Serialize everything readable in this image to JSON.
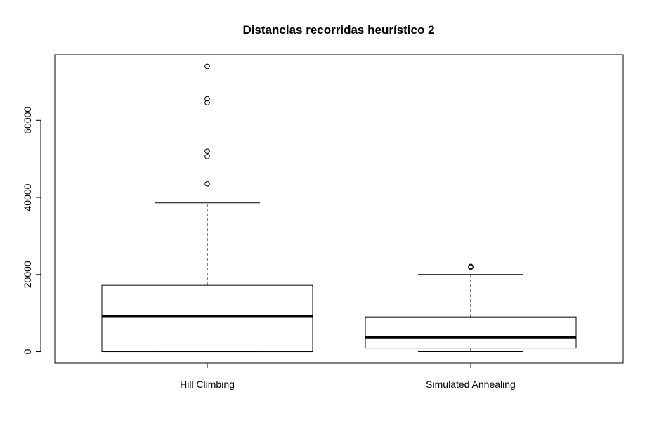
{
  "chart_data": {
    "type": "boxplot",
    "title": "Distancias recorridas heurístico 2",
    "xlabel": "",
    "ylabel": "",
    "ylim": [
      -3000,
      77000
    ],
    "yticks": [
      0,
      20000,
      40000,
      60000
    ],
    "ytick_labels": [
      "0",
      "20000",
      "40000",
      "60000"
    ],
    "grid": false,
    "categories": [
      "Hill Climbing",
      "Simulated Annealing"
    ],
    "series": [
      {
        "category": "Hill Climbing",
        "whisker_low": 0,
        "q1": 0,
        "median": 9200,
        "q3": 17200,
        "whisker_high": 38600,
        "outliers": [
          43500,
          50600,
          52000,
          64600,
          65600,
          74000
        ]
      },
      {
        "category": "Simulated Annealing",
        "whisker_low": 0,
        "q1": 900,
        "median": 3700,
        "q3": 9000,
        "whisker_high": 20000,
        "outliers": [
          21900,
          22100
        ]
      }
    ]
  }
}
